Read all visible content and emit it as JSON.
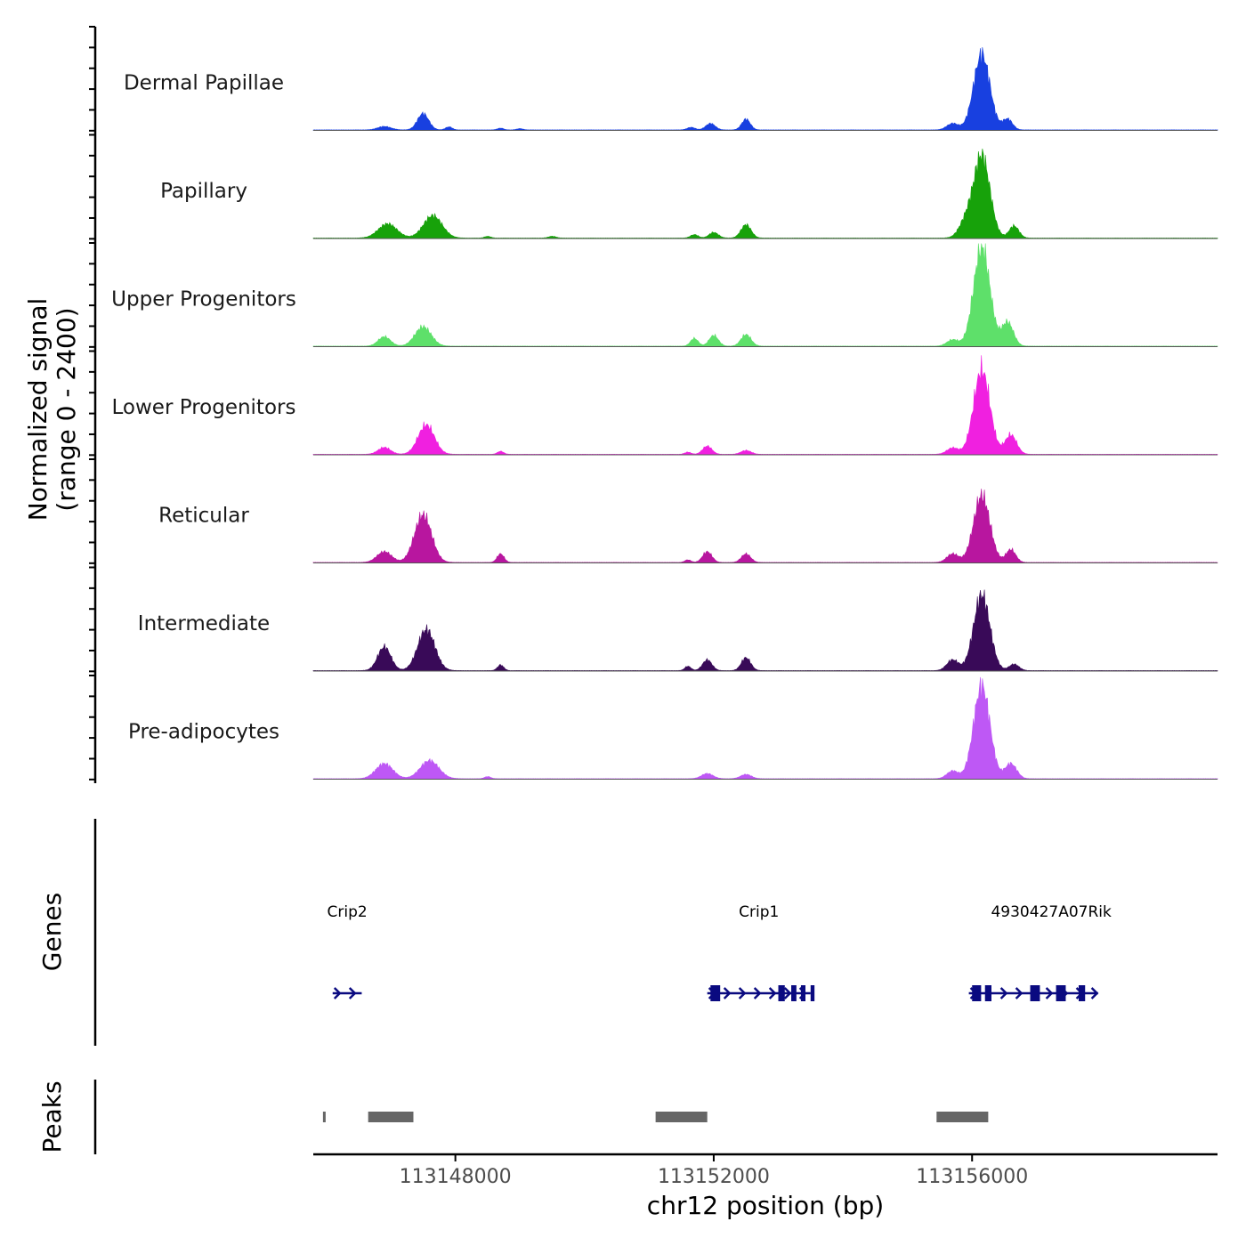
{
  "chart_data": {
    "type": "area",
    "title": "",
    "ylabel_line1": "Normalized signal",
    "ylabel_line2": "(range 0 - 2400)",
    "y_range": [
      0,
      2400
    ],
    "xlabel": "chr12 position (bp)",
    "x_range": [
      113145800,
      113159800
    ],
    "x_ticks": [
      {
        "value": 113148000,
        "label": "113148000"
      },
      {
        "value": 113152000,
        "label": "113152000"
      },
      {
        "value": 113156000,
        "label": "113156000"
      }
    ],
    "tracks": [
      {
        "name": "Dermal Papillae",
        "color": "#1840E0",
        "peaks": [
          [
            113146900,
            80,
            340
          ],
          [
            113147500,
            380,
            290
          ],
          [
            113147900,
            70,
            170
          ],
          [
            113148700,
            40,
            160
          ],
          [
            113149000,
            30,
            160
          ],
          [
            113151650,
            60,
            200
          ],
          [
            113151950,
            150,
            240
          ],
          [
            113152500,
            250,
            220
          ],
          [
            113155700,
            150,
            300
          ],
          [
            113156150,
            1750,
            420
          ],
          [
            113156550,
            250,
            250
          ]
        ]
      },
      {
        "name": "Papillary",
        "color": "#17A20A",
        "peaks": [
          [
            113146950,
            330,
            480
          ],
          [
            113147650,
            520,
            480
          ],
          [
            113148500,
            40,
            160
          ],
          [
            113149500,
            40,
            200
          ],
          [
            113151700,
            80,
            200
          ],
          [
            113152000,
            130,
            240
          ],
          [
            113152500,
            310,
            260
          ],
          [
            113155900,
            350,
            350
          ],
          [
            113156150,
            1900,
            420
          ],
          [
            113156650,
            280,
            250
          ]
        ]
      },
      {
        "name": "Upper Progenitors",
        "color": "#5EE06A",
        "peaks": [
          [
            113146900,
            220,
            320
          ],
          [
            113147500,
            450,
            420
          ],
          [
            113151700,
            180,
            200
          ],
          [
            113152000,
            250,
            240
          ],
          [
            113152500,
            270,
            260
          ],
          [
            113155700,
            150,
            300
          ],
          [
            113156150,
            2300,
            420
          ],
          [
            113156550,
            550,
            300
          ]
        ]
      },
      {
        "name": "Lower Progenitors",
        "color": "#F020E0",
        "peaks": [
          [
            113146900,
            160,
            320
          ],
          [
            113147550,
            680,
            420
          ],
          [
            113148700,
            70,
            160
          ],
          [
            113151600,
            50,
            160
          ],
          [
            113151900,
            190,
            240
          ],
          [
            113152500,
            90,
            260
          ],
          [
            113155700,
            150,
            300
          ],
          [
            113156150,
            1950,
            420
          ],
          [
            113156600,
            450,
            300
          ]
        ]
      },
      {
        "name": "Reticular",
        "color": "#B8169F",
        "peaks": [
          [
            113146900,
            250,
            380
          ],
          [
            113147500,
            1100,
            440
          ],
          [
            113148700,
            200,
            180
          ],
          [
            113151600,
            60,
            160
          ],
          [
            113151900,
            250,
            240
          ],
          [
            113152500,
            200,
            240
          ],
          [
            113155700,
            200,
            300
          ],
          [
            113156150,
            1550,
            420
          ],
          [
            113156600,
            300,
            250
          ]
        ]
      },
      {
        "name": "Intermediate",
        "color": "#390A58",
        "peaks": [
          [
            113146900,
            550,
            340
          ],
          [
            113147550,
            950,
            440
          ],
          [
            113148700,
            130,
            160
          ],
          [
            113151600,
            100,
            160
          ],
          [
            113151900,
            250,
            240
          ],
          [
            113152500,
            300,
            240
          ],
          [
            113155700,
            250,
            300
          ],
          [
            113156150,
            1750,
            420
          ],
          [
            113156650,
            150,
            250
          ]
        ]
      },
      {
        "name": "Pre-adipocytes",
        "color": "#BE58F5",
        "peaks": [
          [
            113146900,
            350,
            440
          ],
          [
            113147600,
            420,
            480
          ],
          [
            113148500,
            50,
            160
          ],
          [
            113151900,
            120,
            300
          ],
          [
            113152500,
            100,
            280
          ],
          [
            113155700,
            180,
            300
          ],
          [
            113156150,
            2150,
            420
          ],
          [
            113156600,
            350,
            300
          ]
        ]
      }
    ],
    "genes_panel_label": "Genes",
    "genes": [
      {
        "name": "Crip2",
        "start": 113146100,
        "end": 113146550,
        "strand": "+",
        "exons": []
      },
      {
        "name": "Crip1",
        "start": 113151900,
        "end": 113153500,
        "strand": "+",
        "exons": [
          [
            113151950,
            113152100
          ],
          [
            113153000,
            113153100
          ],
          [
            113153200,
            113153280
          ],
          [
            113153350,
            113153420
          ],
          [
            113153500,
            113153560
          ]
        ]
      },
      {
        "name": "4930427A07Rik",
        "start": 113155950,
        "end": 113157950,
        "strand": "+",
        "exons": [
          [
            113156000,
            113156140
          ],
          [
            113156200,
            113156300
          ],
          [
            113156900,
            113157050
          ],
          [
            113157300,
            113157450
          ],
          [
            113157650,
            113157750
          ]
        ]
      }
    ],
    "peaks_panel_label": "Peaks",
    "peaks": [
      [
        113145950,
        113145990
      ],
      [
        113146650,
        113147350
      ],
      [
        113151100,
        113151900
      ],
      [
        113155450,
        113156250
      ]
    ]
  }
}
